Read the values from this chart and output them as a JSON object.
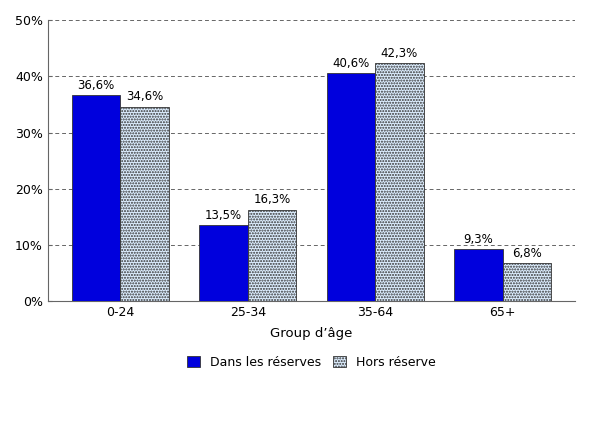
{
  "categories": [
    "0-24",
    "25-34",
    "35-64",
    "65+"
  ],
  "series": [
    {
      "name": "Dans les réserves",
      "values": [
        36.6,
        13.5,
        40.6,
        9.3
      ],
      "color": "#0000DD",
      "hatch": null
    },
    {
      "name": "Hors réserve",
      "values": [
        34.6,
        16.3,
        42.3,
        6.8
      ],
      "color": "#DDEEFF",
      "hatch": "......"
    }
  ],
  "xlabel": "Group d’âge",
  "ylim": [
    0,
    50
  ],
  "yticks": [
    0,
    10,
    20,
    30,
    40,
    50
  ],
  "ytick_labels": [
    "0%",
    "10%",
    "20%",
    "30%",
    "40%",
    "50%"
  ],
  "bar_width": 0.38,
  "background_color": "#ffffff",
  "grid_color": "#666666",
  "label_fontsize": 8.5,
  "axis_fontsize": 9.5,
  "legend_fontsize": 9,
  "tick_fontsize": 9
}
